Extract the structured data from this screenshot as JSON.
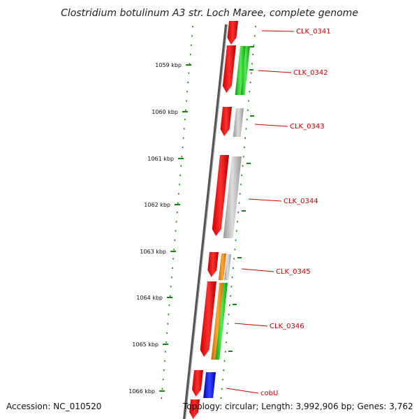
{
  "title": "Clostridium botulinum A3 str. Loch Maree, complete genome",
  "footer": {
    "accession": "Accession: NC_010520",
    "summary": "Topology: circular; Length: 3,992,906 bp; Genes: 3,762"
  },
  "colors": {
    "backbone": "#666666",
    "ticks": "#118811",
    "gene_label": "#cc0000",
    "cds": "#ee1111",
    "gray": "#bbbbbb",
    "green": "#33cc33",
    "orange": "#ee8800",
    "blue": "#1111ee"
  },
  "ticks": [
    {
      "label": "1059 kbp"
    },
    {
      "label": "1060 kbp"
    },
    {
      "label": "1061 kbp"
    },
    {
      "label": "1062 kbp"
    },
    {
      "label": "1063 kbp"
    },
    {
      "label": "1064 kbp"
    },
    {
      "label": "1065 kbp"
    },
    {
      "label": "1066 kbp"
    }
  ],
  "genes": [
    {
      "label": "CLK_0341"
    },
    {
      "label": "CLK_0342"
    },
    {
      "label": "CLK_0343"
    },
    {
      "label": "CLK_0344"
    },
    {
      "label": "CLK_0345"
    },
    {
      "label": "CLK_0346"
    },
    {
      "label": "cobU"
    }
  ]
}
